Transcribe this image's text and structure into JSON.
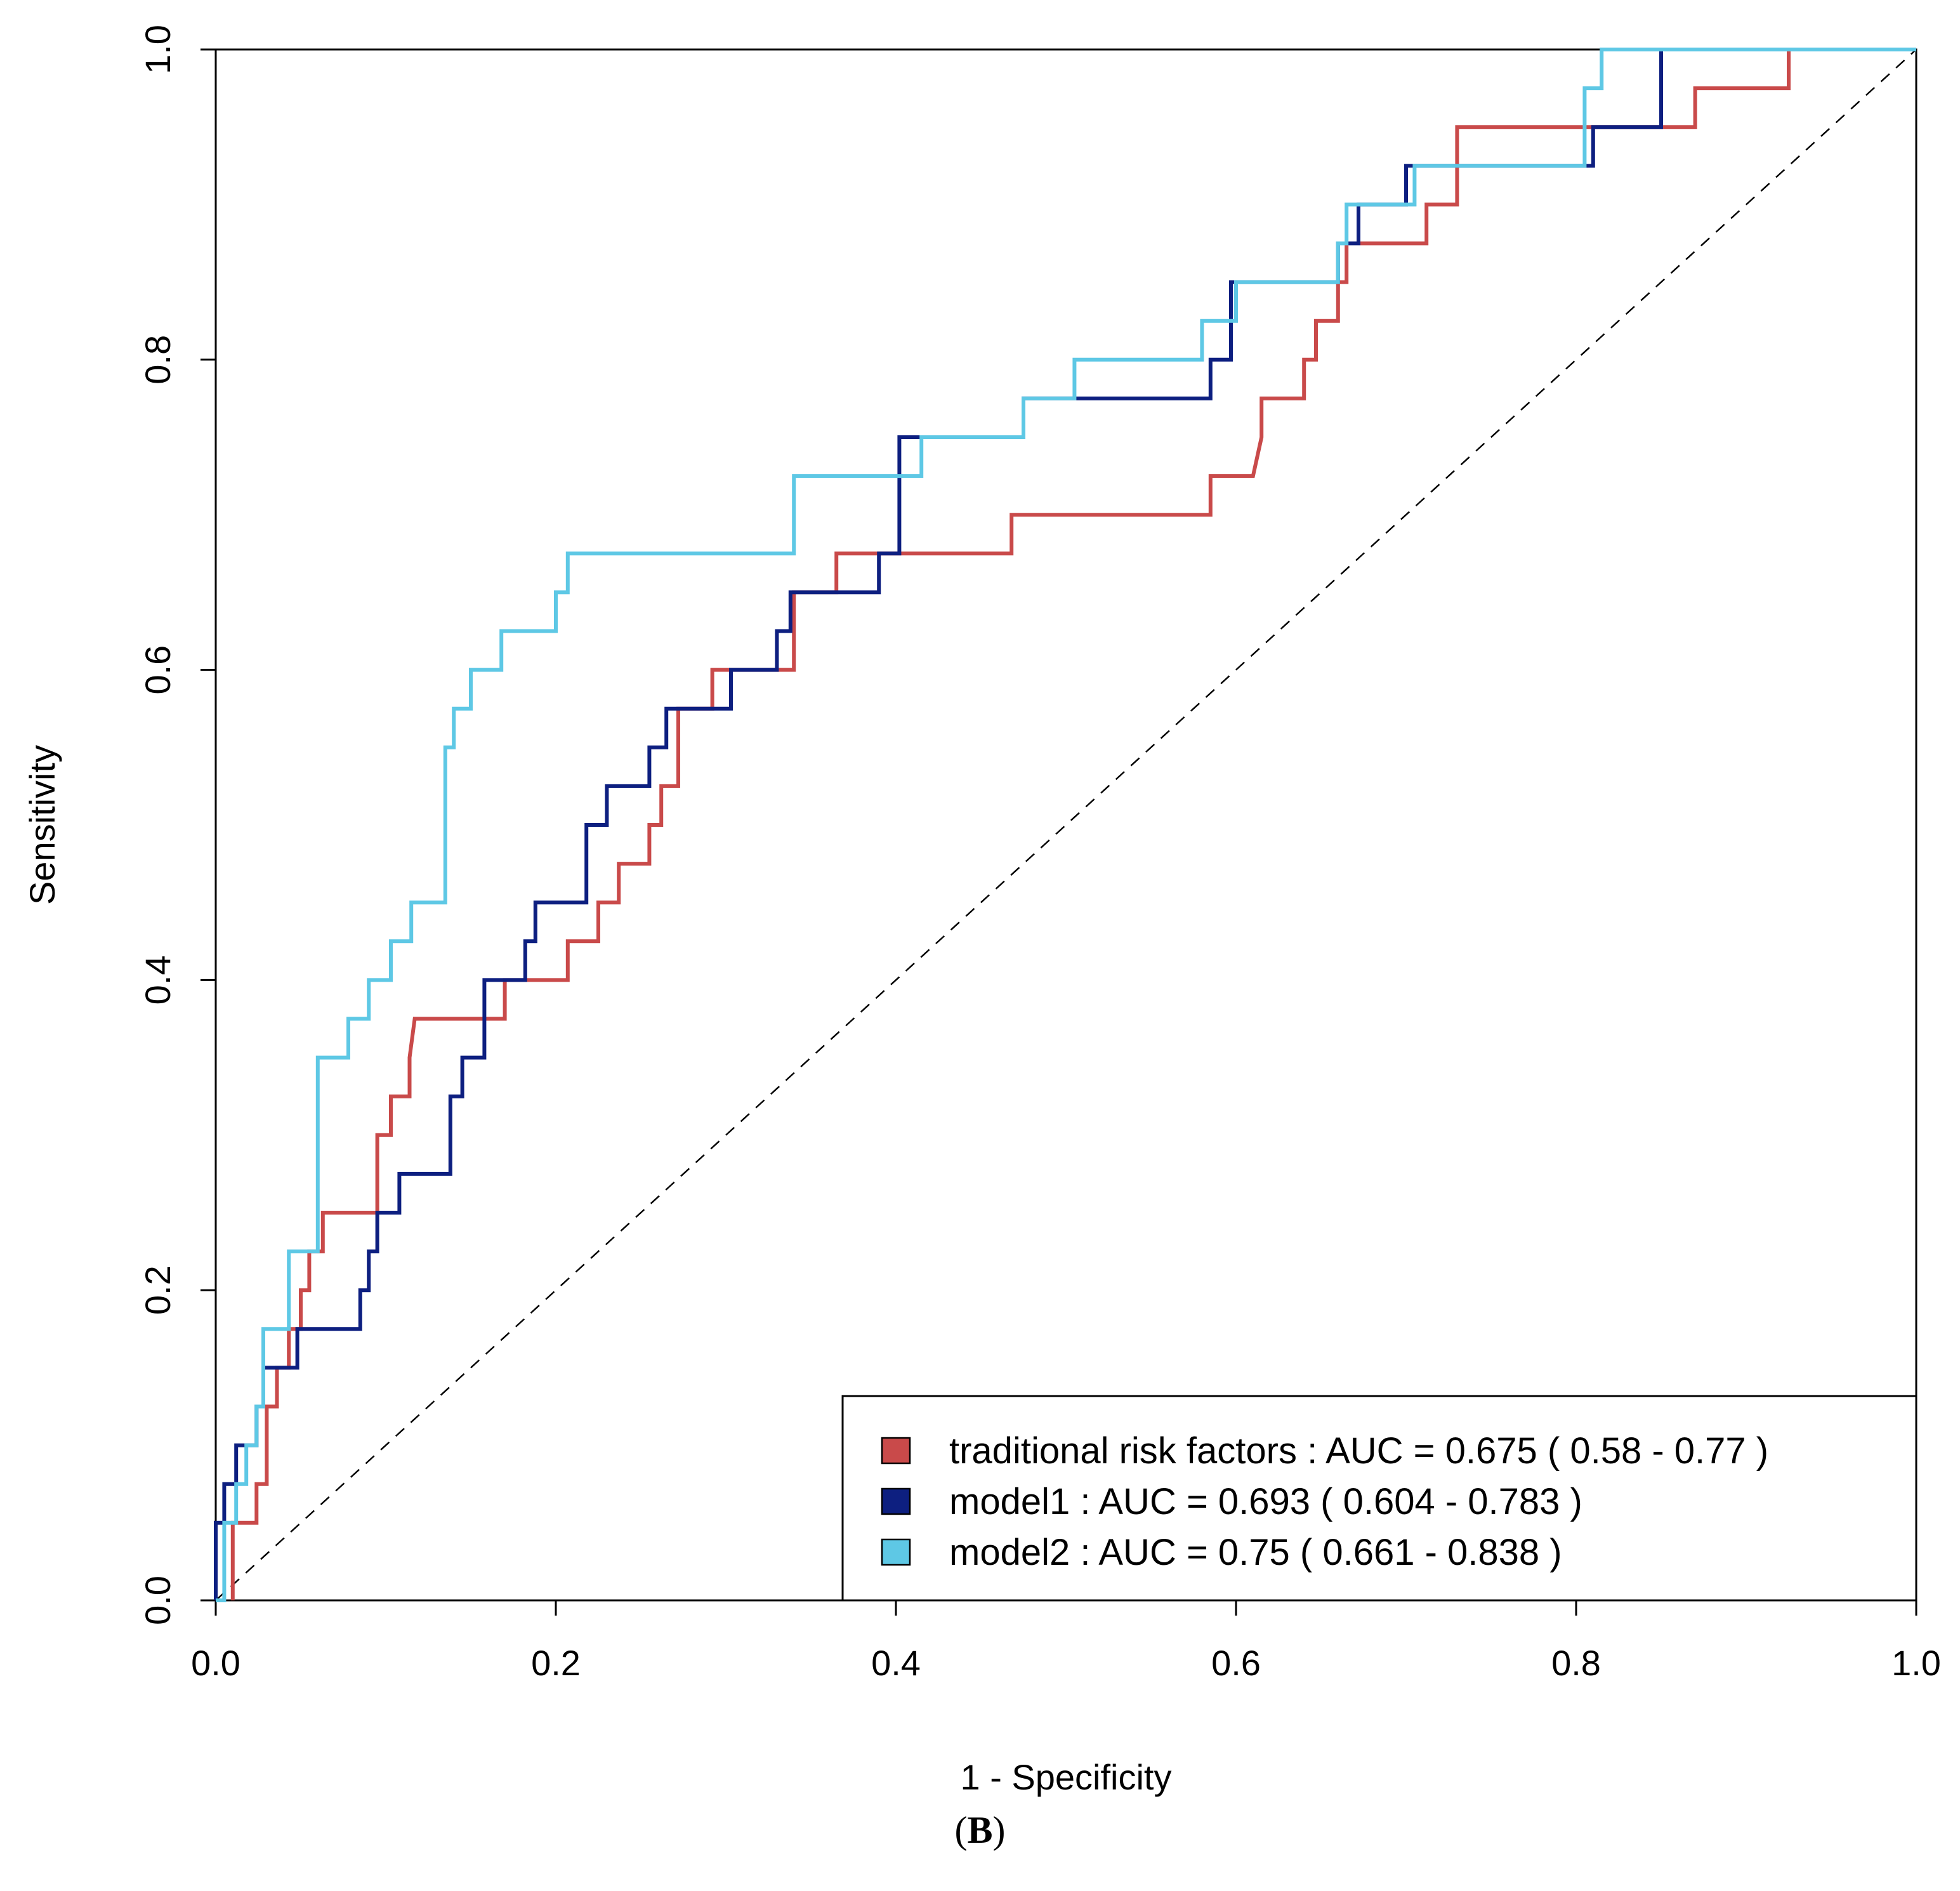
{
  "chart_data": {
    "type": "line",
    "xlabel": "1 - Specificity",
    "ylabel": "Sensitivity",
    "xlim": [
      0,
      1
    ],
    "ylim": [
      0,
      1
    ],
    "xticks": [
      "0.0",
      "0.2",
      "0.4",
      "0.6",
      "0.8",
      "1.0"
    ],
    "yticks": [
      "0.0",
      "0.2",
      "0.4",
      "0.6",
      "0.8",
      "1.0"
    ],
    "reference_line": "diagonal dashed",
    "legend_position": "bottom-right",
    "series": [
      {
        "name": "traditional risk factors : AUC = 0.675  ( 0.58 - 0.77 )",
        "color": "#c94a4a",
        "points": [
          [
            0.01,
            0
          ],
          [
            0.01,
            0.05
          ],
          [
            0.024,
            0.05
          ],
          [
            0.024,
            0.075
          ],
          [
            0.03,
            0.075
          ],
          [
            0.03,
            0.125
          ],
          [
            0.036,
            0.125
          ],
          [
            0.036,
            0.15
          ],
          [
            0.043,
            0.15
          ],
          [
            0.043,
            0.175
          ],
          [
            0.05,
            0.175
          ],
          [
            0.05,
            0.2
          ],
          [
            0.055,
            0.2
          ],
          [
            0.055,
            0.225
          ],
          [
            0.063,
            0.225
          ],
          [
            0.063,
            0.25
          ],
          [
            0.068,
            0.25
          ],
          [
            0.095,
            0.25
          ],
          [
            0.095,
            0.3
          ],
          [
            0.103,
            0.3
          ],
          [
            0.103,
            0.325
          ],
          [
            0.114,
            0.325
          ],
          [
            0.114,
            0.35
          ],
          [
            0.117,
            0.375
          ],
          [
            0.17,
            0.375
          ],
          [
            0.17,
            0.4
          ],
          [
            0.207,
            0.4
          ],
          [
            0.207,
            0.425
          ],
          [
            0.225,
            0.425
          ],
          [
            0.225,
            0.45
          ],
          [
            0.237,
            0.45
          ],
          [
            0.237,
            0.475
          ],
          [
            0.255,
            0.475
          ],
          [
            0.255,
            0.5
          ],
          [
            0.262,
            0.5
          ],
          [
            0.262,
            0.525
          ],
          [
            0.272,
            0.525
          ],
          [
            0.272,
            0.575
          ],
          [
            0.292,
            0.575
          ],
          [
            0.292,
            0.6
          ],
          [
            0.34,
            0.6
          ],
          [
            0.34,
            0.65
          ],
          [
            0.365,
            0.65
          ],
          [
            0.365,
            0.675
          ],
          [
            0.468,
            0.675
          ],
          [
            0.468,
            0.7
          ],
          [
            0.585,
            0.7
          ],
          [
            0.585,
            0.725
          ],
          [
            0.61,
            0.725
          ],
          [
            0.615,
            0.75
          ],
          [
            0.615,
            0.775
          ],
          [
            0.64,
            0.775
          ],
          [
            0.64,
            0.8
          ],
          [
            0.647,
            0.8
          ],
          [
            0.647,
            0.825
          ],
          [
            0.66,
            0.825
          ],
          [
            0.66,
            0.85
          ],
          [
            0.665,
            0.85
          ],
          [
            0.665,
            0.875
          ],
          [
            0.712,
            0.875
          ],
          [
            0.712,
            0.9
          ],
          [
            0.73,
            0.9
          ],
          [
            0.73,
            0.95
          ],
          [
            0.85,
            0.95
          ],
          [
            0.87,
            0.95
          ],
          [
            0.87,
            0.975
          ],
          [
            0.925,
            0.975
          ],
          [
            0.925,
            1
          ],
          [
            1,
            1
          ]
        ]
      },
      {
        "name": "model1 : AUC = 0.693  ( 0.604 - 0.783 )",
        "color": "#0d1f80",
        "points": [
          [
            0,
            0
          ],
          [
            0,
            0.05
          ],
          [
            0.005,
            0.05
          ],
          [
            0.005,
            0.075
          ],
          [
            0.012,
            0.075
          ],
          [
            0.012,
            0.1
          ],
          [
            0.024,
            0.1
          ],
          [
            0.024,
            0.125
          ],
          [
            0.028,
            0.125
          ],
          [
            0.028,
            0.15
          ],
          [
            0.048,
            0.15
          ],
          [
            0.048,
            0.175
          ],
          [
            0.085,
            0.175
          ],
          [
            0.085,
            0.2
          ],
          [
            0.09,
            0.2
          ],
          [
            0.09,
            0.225
          ],
          [
            0.095,
            0.225
          ],
          [
            0.095,
            0.25
          ],
          [
            0.108,
            0.25
          ],
          [
            0.108,
            0.275
          ],
          [
            0.138,
            0.275
          ],
          [
            0.138,
            0.325
          ],
          [
            0.145,
            0.325
          ],
          [
            0.145,
            0.35
          ],
          [
            0.158,
            0.35
          ],
          [
            0.158,
            0.4
          ],
          [
            0.182,
            0.4
          ],
          [
            0.182,
            0.425
          ],
          [
            0.188,
            0.425
          ],
          [
            0.188,
            0.45
          ],
          [
            0.218,
            0.45
          ],
          [
            0.218,
            0.5
          ],
          [
            0.23,
            0.5
          ],
          [
            0.23,
            0.525
          ],
          [
            0.255,
            0.525
          ],
          [
            0.255,
            0.55
          ],
          [
            0.265,
            0.55
          ],
          [
            0.265,
            0.575
          ],
          [
            0.303,
            0.575
          ],
          [
            0.303,
            0.6
          ],
          [
            0.33,
            0.6
          ],
          [
            0.33,
            0.625
          ],
          [
            0.338,
            0.625
          ],
          [
            0.338,
            0.65
          ],
          [
            0.39,
            0.65
          ],
          [
            0.39,
            0.675
          ],
          [
            0.402,
            0.675
          ],
          [
            0.402,
            0.75
          ],
          [
            0.475,
            0.75
          ],
          [
            0.475,
            0.775
          ],
          [
            0.585,
            0.775
          ],
          [
            0.585,
            0.8
          ],
          [
            0.597,
            0.8
          ],
          [
            0.597,
            0.85
          ],
          [
            0.66,
            0.85
          ],
          [
            0.66,
            0.875
          ],
          [
            0.672,
            0.875
          ],
          [
            0.672,
            0.9
          ],
          [
            0.7,
            0.9
          ],
          [
            0.7,
            0.925
          ],
          [
            0.81,
            0.925
          ],
          [
            0.81,
            0.95
          ],
          [
            0.85,
            0.95
          ],
          [
            0.85,
            1
          ],
          [
            1,
            1
          ]
        ]
      },
      {
        "name": "model2 : AUC = 0.75  ( 0.661 - 0.838 )",
        "color": "#5ec8e5",
        "points": [
          [
            0,
            0
          ],
          [
            0.005,
            0
          ],
          [
            0.005,
            0.05
          ],
          [
            0.012,
            0.05
          ],
          [
            0.012,
            0.075
          ],
          [
            0.018,
            0.075
          ],
          [
            0.018,
            0.1
          ],
          [
            0.024,
            0.1
          ],
          [
            0.024,
            0.125
          ],
          [
            0.028,
            0.125
          ],
          [
            0.028,
            0.175
          ],
          [
            0.043,
            0.175
          ],
          [
            0.043,
            0.225
          ],
          [
            0.06,
            0.225
          ],
          [
            0.06,
            0.35
          ],
          [
            0.078,
            0.35
          ],
          [
            0.078,
            0.375
          ],
          [
            0.09,
            0.375
          ],
          [
            0.09,
            0.4
          ],
          [
            0.103,
            0.4
          ],
          [
            0.103,
            0.425
          ],
          [
            0.115,
            0.425
          ],
          [
            0.115,
            0.45
          ],
          [
            0.135,
            0.45
          ],
          [
            0.135,
            0.55
          ],
          [
            0.14,
            0.55
          ],
          [
            0.14,
            0.575
          ],
          [
            0.15,
            0.575
          ],
          [
            0.15,
            0.6
          ],
          [
            0.168,
            0.6
          ],
          [
            0.168,
            0.625
          ],
          [
            0.2,
            0.625
          ],
          [
            0.2,
            0.65
          ],
          [
            0.207,
            0.65
          ],
          [
            0.207,
            0.675
          ],
          [
            0.34,
            0.675
          ],
          [
            0.34,
            0.725
          ],
          [
            0.4,
            0.725
          ],
          [
            0.415,
            0.725
          ],
          [
            0.415,
            0.75
          ],
          [
            0.475,
            0.75
          ],
          [
            0.475,
            0.775
          ],
          [
            0.505,
            0.775
          ],
          [
            0.505,
            0.8
          ],
          [
            0.58,
            0.8
          ],
          [
            0.58,
            0.825
          ],
          [
            0.6,
            0.825
          ],
          [
            0.6,
            0.85
          ],
          [
            0.66,
            0.85
          ],
          [
            0.66,
            0.875
          ],
          [
            0.665,
            0.875
          ],
          [
            0.665,
            0.9
          ],
          [
            0.705,
            0.9
          ],
          [
            0.705,
            0.925
          ],
          [
            0.805,
            0.925
          ],
          [
            0.805,
            0.975
          ],
          [
            0.815,
            0.975
          ],
          [
            0.815,
            1
          ],
          [
            1,
            1
          ]
        ]
      }
    ]
  },
  "panel_label": "B"
}
